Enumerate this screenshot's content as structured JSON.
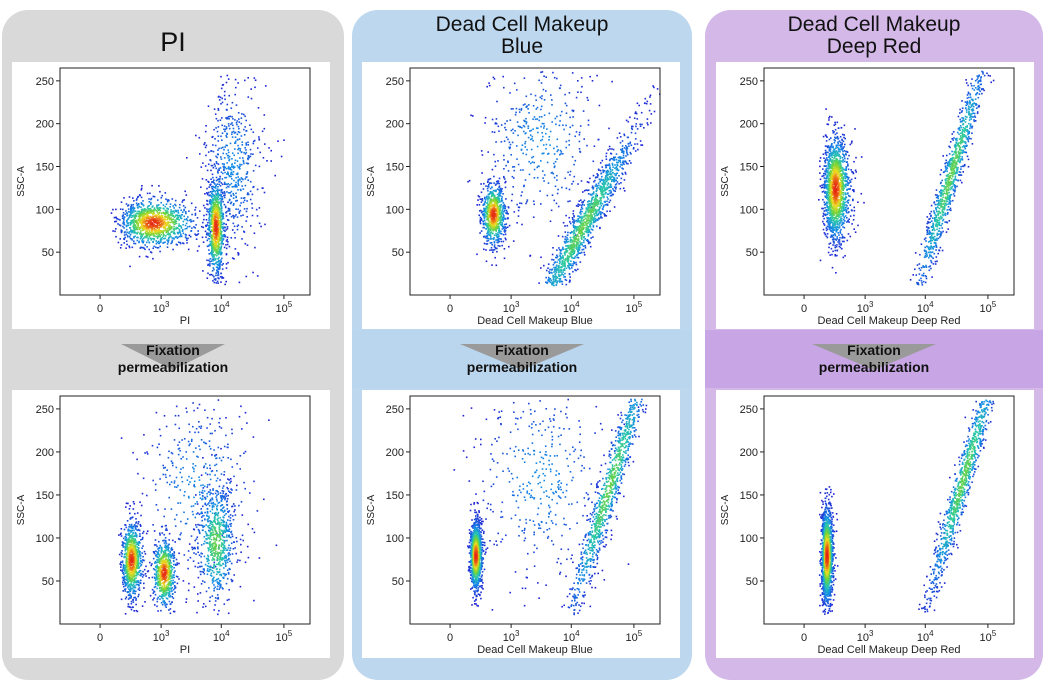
{
  "colors": {
    "panel_pi": "#d9d9d9",
    "panel_blue": "#bdd7ee",
    "panel_red": "#d3b8e8",
    "band_blue_mid": "#bad5ee",
    "band_red_mid": "#c8a6e6",
    "arrow": "#9a9a9a"
  },
  "panels": [
    {
      "key": "pi",
      "title_line1": "PI",
      "title_line2": ""
    },
    {
      "key": "blue",
      "title_line1": "Dead Cell Makeup",
      "title_line2": "Blue"
    },
    {
      "key": "red",
      "title_line1": "Dead Cell Makeup",
      "title_line2": "Deep Red"
    }
  ],
  "arrow": {
    "label_line1": "Fixation",
    "label_line2": "permeabilization"
  },
  "chart_data": [
    {
      "type": "scatter",
      "panel": "PI",
      "stage": "before fixation",
      "xlabel": "PI",
      "ylabel": "SSC-A",
      "x_scale": "biexponential",
      "x_ticks": [
        "0",
        "10^3",
        "10^4",
        "10^5"
      ],
      "y_ticks": [
        50,
        100,
        150,
        200,
        250
      ],
      "ylim": [
        0,
        265
      ],
      "grid": false,
      "populations": [
        {
          "x_center": 700,
          "y_center": 85,
          "x_sd_decades": 0.35,
          "y_sd": 14,
          "density": "high",
          "share": 0.45
        },
        {
          "x_center": 8000,
          "y_center": 80,
          "x_sd_decades": 0.07,
          "y_sd": 28,
          "density": "high",
          "share": 0.35
        },
        {
          "x_center": 15000,
          "y_center": 150,
          "x_sd_decades": 0.25,
          "y_sd": 50,
          "density": "low",
          "share": 0.2
        }
      ]
    },
    {
      "type": "scatter",
      "panel": "Dead Cell Makeup Blue",
      "stage": "before fixation",
      "xlabel": "Dead Cell Makeup Blue",
      "ylabel": "SSC-A",
      "x_scale": "biexponential",
      "x_ticks": [
        "0",
        "10^3",
        "10^4",
        "10^5"
      ],
      "y_ticks": [
        50,
        100,
        150,
        200,
        250
      ],
      "ylim": [
        0,
        265
      ],
      "grid": false,
      "populations": [
        {
          "x_center": 450,
          "y_center": 95,
          "x_sd_decades": 0.12,
          "y_sd": 18,
          "density": "high",
          "share": 0.3
        },
        {
          "x_center": 15000,
          "y_center": 80,
          "x_sd_decades": 0.45,
          "y_sd": 45,
          "density": "medium",
          "share": 0.55,
          "trend": "rising"
        },
        {
          "x_center": 3000,
          "y_center": 180,
          "x_sd_decades": 0.5,
          "y_sd": 50,
          "density": "low",
          "share": 0.15
        }
      ]
    },
    {
      "type": "scatter",
      "panel": "Dead Cell Makeup Deep Red",
      "stage": "before fixation",
      "xlabel": "Dead Cell Makeup Deep Red",
      "ylabel": "SSC-A",
      "x_scale": "biexponential",
      "x_ticks": [
        "0",
        "10^3",
        "10^4",
        "10^5"
      ],
      "y_ticks": [
        50,
        100,
        150,
        200,
        250
      ],
      "ylim": [
        0,
        265
      ],
      "grid": false,
      "populations": [
        {
          "x_center": 250,
          "y_center": 125,
          "x_sd_decades": 0.15,
          "y_sd": 30,
          "density": "high",
          "share": 0.6
        },
        {
          "x_center": 25000,
          "y_center": 140,
          "x_sd_decades": 0.3,
          "y_sd": 55,
          "density": "medium",
          "share": 0.4,
          "trend": "rising"
        }
      ]
    },
    {
      "type": "scatter",
      "panel": "PI",
      "stage": "after fixation/permeabilization",
      "xlabel": "PI",
      "ylabel": "SSC-A",
      "x_scale": "biexponential",
      "x_ticks": [
        "0",
        "10^3",
        "10^4",
        "10^5"
      ],
      "y_ticks": [
        50,
        100,
        150,
        200,
        250
      ],
      "ylim": [
        0,
        265
      ],
      "grid": false,
      "populations": [
        {
          "x_center": 250,
          "y_center": 75,
          "x_sd_decades": 0.12,
          "y_sd": 22,
          "density": "high",
          "share": 0.35
        },
        {
          "x_center": 1100,
          "y_center": 60,
          "x_sd_decades": 0.1,
          "y_sd": 20,
          "density": "high",
          "share": 0.25
        },
        {
          "x_center": 8000,
          "y_center": 95,
          "x_sd_decades": 0.15,
          "y_sd": 35,
          "density": "medium",
          "share": 0.25
        },
        {
          "x_center": 4000,
          "y_center": 160,
          "x_sd_decades": 0.5,
          "y_sd": 55,
          "density": "low",
          "share": 0.15
        }
      ]
    },
    {
      "type": "scatter",
      "panel": "Dead Cell Makeup Blue",
      "stage": "after fixation/permeabilization",
      "xlabel": "Dead Cell Makeup Blue",
      "ylabel": "SSC-A",
      "x_scale": "biexponential",
      "x_ticks": [
        "0",
        "10^3",
        "10^4",
        "10^5"
      ],
      "y_ticks": [
        50,
        100,
        150,
        200,
        250
      ],
      "ylim": [
        0,
        265
      ],
      "grid": false,
      "populations": [
        {
          "x_center": 180,
          "y_center": 80,
          "x_sd_decades": 0.08,
          "y_sd": 20,
          "density": "high",
          "share": 0.45
        },
        {
          "x_center": 40000,
          "y_center": 160,
          "x_sd_decades": 0.35,
          "y_sd": 60,
          "density": "medium",
          "share": 0.4,
          "trend": "rising"
        },
        {
          "x_center": 3000,
          "y_center": 170,
          "x_sd_decades": 0.6,
          "y_sd": 60,
          "density": "low",
          "share": 0.15
        }
      ]
    },
    {
      "type": "scatter",
      "panel": "Dead Cell Makeup Deep Red",
      "stage": "after fixation/permeabilization",
      "xlabel": "Dead Cell Makeup Deep Red",
      "ylabel": "SSC-A",
      "x_scale": "biexponential",
      "x_ticks": [
        "0",
        "10^3",
        "10^4",
        "10^5"
      ],
      "y_ticks": [
        50,
        100,
        150,
        200,
        250
      ],
      "ylim": [
        0,
        265
      ],
      "grid": false,
      "populations": [
        {
          "x_center": 150,
          "y_center": 80,
          "x_sd_decades": 0.08,
          "y_sd": 28,
          "density": "high",
          "share": 0.6
        },
        {
          "x_center": 40000,
          "y_center": 170,
          "x_sd_decades": 0.3,
          "y_sd": 55,
          "density": "medium",
          "share": 0.4,
          "trend": "rising"
        }
      ]
    }
  ]
}
